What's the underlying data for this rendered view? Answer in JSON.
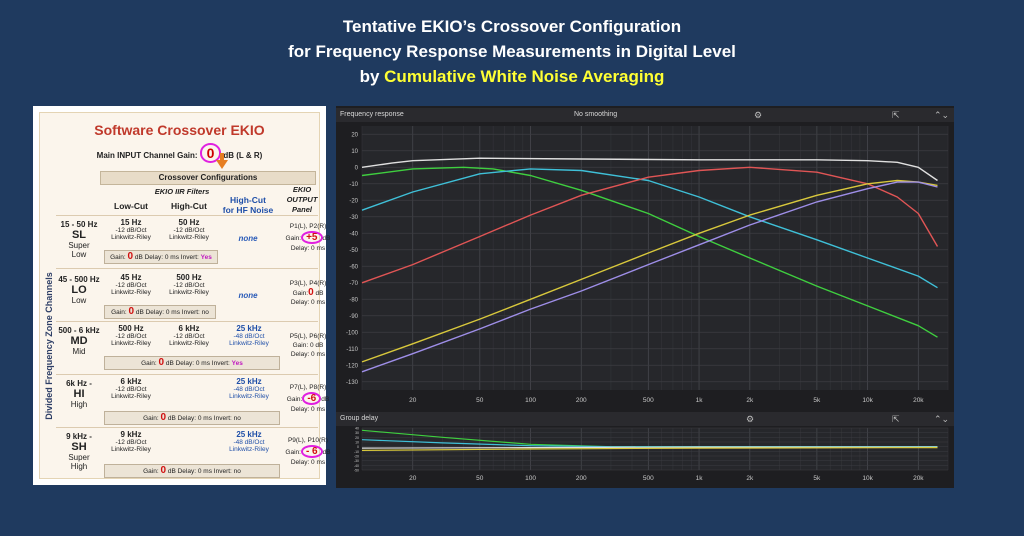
{
  "title": {
    "line1": "Tentative EKIO’s Crossover Configuration",
    "line2": "for Frequency Response Measurements in Digital Level",
    "line3_prefix": "by ",
    "line3_highlight": "Cumulative White Noise Averaging"
  },
  "panel": {
    "title": "Software Crossover EKIO",
    "main_gain_prefix": "Main INPUT Channel Gain:",
    "main_gain_value": "0",
    "main_gain_suffix": "dB (L & R)",
    "crossover_configurations": "Crossover Configurations",
    "iir_filters": "EKIO IIR Filters",
    "low_cut": "Low-Cut",
    "high_cut": "High-Cut",
    "high_cut_hf_line1": "High-Cut",
    "high_cut_hf_line2": "for HF Noise",
    "output_line1": "EKIO",
    "output_line2": "OUTPUT",
    "output_line3": "Panel",
    "band_label": "Divided  Frequency Zone Channels",
    "rows": [
      {
        "freq": "15 - 50 Hz",
        "code": "SL",
        "name1": "Super",
        "name2": "Low",
        "lc_freq": "15 Hz",
        "lc_slope": "-12 dB/Oct",
        "lc_type": "Linkwitz-Riley",
        "hc_freq": "50 Hz",
        "hc_slope": "-12 dB/Oct",
        "hc_type": "Linkwitz-Riley",
        "hf": "none",
        "gain_label": "Gain:",
        "gain_value": "0",
        "gain_unit": "dB",
        "delay": "Delay:",
        "delay_value": "0",
        "delay_unit": "ms",
        "invert": "Invert:",
        "invert_value": "Yes",
        "out_ports": "P1(L), P2(R)",
        "out_gain_label": "Gain:",
        "out_gain": "+5",
        "out_gain_unit": "dB",
        "out_delay": "Delay: 0 ms"
      },
      {
        "freq": "45 - 500 Hz",
        "code": "LO",
        "name1": "Low",
        "name2": "",
        "lc_freq": "45 Hz",
        "lc_slope": "-12 dB/Oct",
        "lc_type": "Linkwitz-Riley",
        "hc_freq": "500 Hz",
        "hc_slope": "-12 dB/Oct",
        "hc_type": "Linkwitz-Riley",
        "hf": "none",
        "gain_label": "Gain:",
        "gain_value": "0",
        "gain_unit": "dB",
        "delay": "Delay:",
        "delay_value": "0",
        "delay_unit": "ms",
        "invert": "Invert:",
        "invert_value": "no",
        "out_ports": "P3(L), P4(R)",
        "out_gain_label": "Gain:",
        "out_gain": "0",
        "out_gain_unit": "dB",
        "out_delay": "Delay: 0 ms"
      },
      {
        "freq": "500 - 6 kHz",
        "code": "MD",
        "name1": "Mid",
        "name2": "",
        "lc_freq": "500 Hz",
        "lc_slope": "-12 dB/Oct",
        "lc_type": "Linkwitz-Riley",
        "hc_freq": "6 kHz",
        "hc_slope": "-12 dB/Oct",
        "hc_type": "Linkwitz-Riley",
        "hf_freq": "25 kHz",
        "hf_slope": "-48 dB/Oct",
        "hf_type": "Linkwitz-Riley",
        "gain_label": "Gain:",
        "gain_value": "0",
        "gain_unit": "dB",
        "delay": "Delay:",
        "delay_value": "0",
        "delay_unit": "ms",
        "invert": "Invert:",
        "invert_value": "Yes",
        "out_ports": "P5(L), P6(R)",
        "out_gain_label": "Gain:",
        "out_gain": "0",
        "out_gain_unit": "dB",
        "out_delay": "Delay: 0 ms"
      },
      {
        "freq": "6k Hz -",
        "code": "HI",
        "name1": "High",
        "name2": "",
        "lc_freq": "6 kHz",
        "lc_slope": "-12 dB/Oct",
        "lc_type": "Linkwitz-Riley",
        "hf_freq": "25 kHz",
        "hf_slope": "-48 dB/Oct",
        "hf_type": "Linkwitz-Riley",
        "gain_label": "Gain:",
        "gain_value": "0",
        "gain_unit": "dB",
        "delay": "Delay:",
        "delay_value": "0",
        "delay_unit": "ms",
        "invert": "Invert:",
        "invert_value": "no",
        "out_ports": "P7(L), P8(R)",
        "out_gain_label": "Gain:",
        "out_gain": "-6",
        "out_gain_unit": "dB",
        "out_delay": "Delay: 0 ms"
      },
      {
        "freq": "9 kHz -",
        "code": "SH",
        "name1": "Super",
        "name2": "High",
        "lc_freq": "9 kHz",
        "lc_slope": "-12 dB/Oct",
        "lc_type": "Linkwitz-Riley",
        "hf_freq": "25 kHz",
        "hf_slope": "-48 dB/Oct",
        "hf_type": "Linkwitz-Riley",
        "gain_label": "Gain:",
        "gain_value": "0",
        "gain_unit": "dB",
        "delay": "Delay:",
        "delay_value": "0",
        "delay_unit": "ms",
        "invert": "Invert:",
        "invert_value": "no",
        "out_ports": "P9(L), P10(R)",
        "out_gain_label": "Gain:",
        "out_gain": "- 6",
        "out_gain_unit": "dB",
        "out_delay": "Delay: 0 ms"
      }
    ]
  },
  "graph_window": {
    "fr_title": "Frequency response",
    "smoothing": "No smoothing",
    "gd_title": "Group delay",
    "gear_icon": "gear-icon",
    "export_icon": "export-icon",
    "collapse_icon": "chevron-up-down-icon"
  },
  "chart_data": [
    {
      "type": "line",
      "title": "Frequency response",
      "xscale": "log",
      "xlim": [
        10,
        30000
      ],
      "ylim": [
        -135,
        25
      ],
      "x_ticks": [
        20,
        50,
        100,
        200,
        500,
        1000,
        2000,
        5000,
        10000,
        20000
      ],
      "x_tick_labels": [
        "20",
        "50",
        "100",
        "200",
        "500",
        "1k",
        "2k",
        "5k",
        "10k",
        "20k"
      ],
      "y_ticks": [
        20,
        10,
        0,
        -10,
        -20,
        -30,
        -40,
        -50,
        -60,
        -70,
        -80,
        -90,
        -100,
        -110,
        -120,
        -130
      ],
      "grid": true,
      "series": [
        {
          "color": "#e0e0e0",
          "points": [
            [
              10,
              0
            ],
            [
              15,
              2.5
            ],
            [
              20,
              4
            ],
            [
              50,
              5.5
            ],
            [
              200,
              5
            ],
            [
              1000,
              4.5
            ],
            [
              5000,
              4.5
            ],
            [
              10000,
              4
            ],
            [
              15000,
              3
            ],
            [
              20000,
              0
            ],
            [
              26000,
              -8
            ]
          ]
        },
        {
          "color": "#3fcf3f",
          "points": [
            [
              10,
              -5
            ],
            [
              20,
              -1
            ],
            [
              40,
              0
            ],
            [
              60,
              -1
            ],
            [
              100,
              -5
            ],
            [
              200,
              -14
            ],
            [
              500,
              -28
            ],
            [
              1000,
              -42
            ],
            [
              2000,
              -55
            ],
            [
              5000,
              -72
            ],
            [
              10000,
              -84
            ],
            [
              20000,
              -96
            ],
            [
              26000,
              -103
            ]
          ]
        },
        {
          "color": "#3fc0d8",
          "points": [
            [
              10,
              -26
            ],
            [
              20,
              -15
            ],
            [
              50,
              -4
            ],
            [
              100,
              -1
            ],
            [
              200,
              -2
            ],
            [
              500,
              -8
            ],
            [
              1000,
              -18
            ],
            [
              2000,
              -30
            ],
            [
              5000,
              -44
            ],
            [
              10000,
              -55
            ],
            [
              20000,
              -66
            ],
            [
              26000,
              -73
            ]
          ]
        },
        {
          "color": "#e05555",
          "points": [
            [
              10,
              -70
            ],
            [
              20,
              -59
            ],
            [
              50,
              -42
            ],
            [
              100,
              -29
            ],
            [
              200,
              -17
            ],
            [
              500,
              -6
            ],
            [
              1000,
              -2
            ],
            [
              2000,
              0
            ],
            [
              5000,
              -3
            ],
            [
              10000,
              -10
            ],
            [
              15000,
              -18
            ],
            [
              20000,
              -28
            ],
            [
              26000,
              -48
            ]
          ]
        },
        {
          "color": "#d8c83c",
          "points": [
            [
              10,
              -118
            ],
            [
              20,
              -107
            ],
            [
              50,
              -92
            ],
            [
              100,
              -80
            ],
            [
              200,
              -68
            ],
            [
              500,
              -52
            ],
            [
              1000,
              -40
            ],
            [
              2000,
              -29
            ],
            [
              5000,
              -17
            ],
            [
              10000,
              -10
            ],
            [
              15000,
              -8
            ],
            [
              20000,
              -9
            ],
            [
              26000,
              -11
            ]
          ]
        },
        {
          "color": "#9e8ee8",
          "points": [
            [
              10,
              -124
            ],
            [
              20,
              -113
            ],
            [
              50,
              -98
            ],
            [
              100,
              -86
            ],
            [
              200,
              -75
            ],
            [
              500,
              -59
            ],
            [
              1000,
              -47
            ],
            [
              2000,
              -35
            ],
            [
              5000,
              -21
            ],
            [
              10000,
              -13
            ],
            [
              15000,
              -9
            ],
            [
              20000,
              -9
            ],
            [
              26000,
              -12
            ]
          ]
        }
      ]
    },
    {
      "type": "line",
      "title": "Group delay",
      "xscale": "log",
      "xlim": [
        10,
        30000
      ],
      "x_ticks": [
        20,
        50,
        100,
        200,
        500,
        1000,
        2000,
        5000,
        10000,
        20000
      ],
      "x_tick_labels": [
        "20",
        "50",
        "100",
        "200",
        "500",
        "1k",
        "2k",
        "5k",
        "10k",
        "20k"
      ],
      "y_tick_labels": [
        "40",
        "30",
        "20",
        "10",
        "0",
        "-10",
        "-20",
        "-30",
        "-40",
        "-50"
      ],
      "ylim": [
        -50,
        40
      ],
      "grid": true,
      "series": [
        {
          "color": "#3fcf3f",
          "points": [
            [
              10,
              35
            ],
            [
              30,
              20
            ],
            [
              100,
              5
            ],
            [
              300,
              0
            ],
            [
              26000,
              0
            ]
          ]
        },
        {
          "color": "#3fc0d8",
          "points": [
            [
              10,
              15
            ],
            [
              30,
              8
            ],
            [
              100,
              2
            ],
            [
              300,
              0
            ],
            [
              26000,
              0
            ]
          ]
        },
        {
          "color": "#e0e0e0",
          "points": [
            [
              10,
              -3
            ],
            [
              100,
              -2
            ],
            [
              1000,
              -1
            ],
            [
              26000,
              -1
            ]
          ]
        },
        {
          "color": "#d8c83c",
          "points": [
            [
              10,
              -8
            ],
            [
              100,
              -5
            ],
            [
              1000,
              -3
            ],
            [
              26000,
              -2
            ]
          ]
        }
      ]
    }
  ]
}
